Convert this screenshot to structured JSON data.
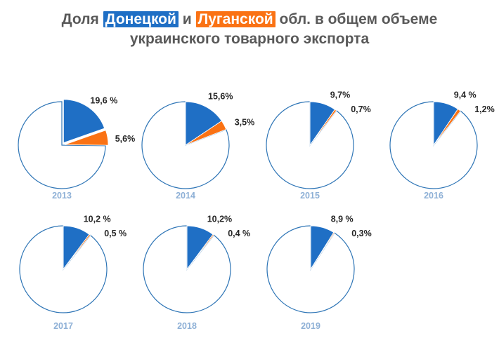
{
  "title": {
    "part1": "Доля ",
    "donetsk": "Донецкой",
    "part2": " и ",
    "lugansk": "Луганской",
    "part3": " обл. в общем объеме",
    "line2": "украинского товарного экспорта"
  },
  "colors": {
    "donetsk": "#1f6fc5",
    "lugansk": "#fa7214",
    "outline": "#2e75b6",
    "year": "#8eb0d6",
    "title": "#595959"
  },
  "chart_data": {
    "type": "pie",
    "series": [
      {
        "name": "Донецкой",
        "color": "#1f6fc5"
      },
      {
        "name": "Луганской",
        "color": "#fa7214"
      }
    ],
    "charts": [
      {
        "year": "2013",
        "donetsk": 19.6,
        "lugansk": 5.6,
        "donetsk_label": "19,6 %",
        "lugansk_label": "5,6%",
        "exploded": true
      },
      {
        "year": "2014",
        "donetsk": 15.6,
        "lugansk": 3.5,
        "donetsk_label": "15,6%",
        "lugansk_label": "3,5%",
        "exploded": false
      },
      {
        "year": "2015",
        "donetsk": 9.7,
        "lugansk": 0.7,
        "donetsk_label": "9,7%",
        "lugansk_label": "0,7%",
        "exploded": false
      },
      {
        "year": "2016",
        "donetsk": 9.4,
        "lugansk": 1.2,
        "donetsk_label": "9,4 %",
        "lugansk_label": "1,2%",
        "exploded": false
      },
      {
        "year": "2017",
        "donetsk": 10.2,
        "lugansk": 0.5,
        "donetsk_label": "10,2 %",
        "lugansk_label": "0,5 %",
        "exploded": false
      },
      {
        "year": "2018",
        "donetsk": 10.2,
        "lugansk": 0.4,
        "donetsk_label": "10,2%",
        "lugansk_label": "0,4 %",
        "exploded": false
      },
      {
        "year": "2019",
        "donetsk": 8.9,
        "lugansk": 0.3,
        "donetsk_label": "8,9 %",
        "lugansk_label": "0,3%",
        "exploded": false
      }
    ]
  }
}
